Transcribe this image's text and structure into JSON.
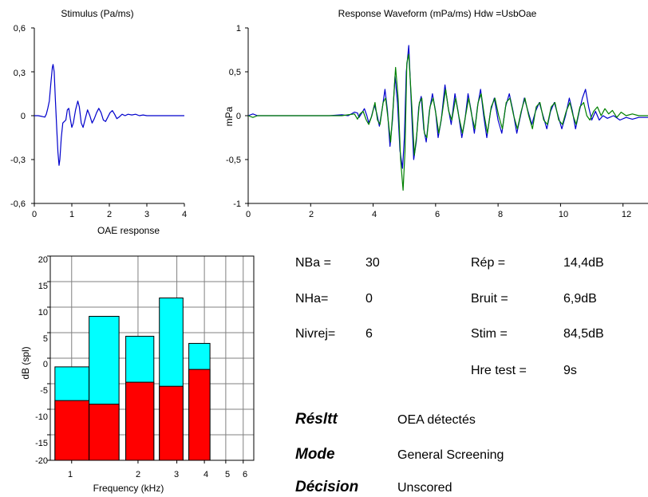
{
  "chart_data": [
    {
      "id": "stimulus",
      "type": "line",
      "title": "Stimulus (Pa/ms)",
      "xlim": [
        0,
        4
      ],
      "ylim": [
        -0.6,
        0.6
      ],
      "x_ticks": [
        "0",
        "1",
        "2",
        "3",
        "4"
      ],
      "y_ticks": [
        "0,6",
        "0,3",
        "0",
        "-0,3",
        "-0,6"
      ],
      "grid": false,
      "series": [
        {
          "color": "#0000cc",
          "points": [
            [
              0,
              0
            ],
            [
              0.1,
              0
            ],
            [
              0.2,
              -0.005
            ],
            [
              0.28,
              -0.01
            ],
            [
              0.32,
              0.01
            ],
            [
              0.36,
              0.05
            ],
            [
              0.4,
              0.1
            ],
            [
              0.44,
              0.22
            ],
            [
              0.48,
              0.33
            ],
            [
              0.5,
              0.35
            ],
            [
              0.53,
              0.3
            ],
            [
              0.56,
              0.12
            ],
            [
              0.6,
              -0.1
            ],
            [
              0.63,
              -0.25
            ],
            [
              0.66,
              -0.34
            ],
            [
              0.68,
              -0.3
            ],
            [
              0.72,
              -0.15
            ],
            [
              0.76,
              -0.05
            ],
            [
              0.8,
              -0.04
            ],
            [
              0.84,
              -0.03
            ],
            [
              0.88,
              0.04
            ],
            [
              0.92,
              0.05
            ],
            [
              0.96,
              -0.02
            ],
            [
              1.0,
              -0.08
            ],
            [
              1.04,
              -0.05
            ],
            [
              1.1,
              0.04
            ],
            [
              1.16,
              0.1
            ],
            [
              1.2,
              0.06
            ],
            [
              1.25,
              -0.05
            ],
            [
              1.3,
              -0.08
            ],
            [
              1.36,
              -0.02
            ],
            [
              1.42,
              0.04
            ],
            [
              1.48,
              0.0
            ],
            [
              1.54,
              -0.05
            ],
            [
              1.6,
              -0.02
            ],
            [
              1.66,
              0.02
            ],
            [
              1.72,
              0.05
            ],
            [
              1.78,
              0.02
            ],
            [
              1.84,
              -0.03
            ],
            [
              1.9,
              -0.04
            ],
            [
              1.96,
              -0.01
            ],
            [
              2.02,
              0.02
            ],
            [
              2.08,
              0.035
            ],
            [
              2.14,
              0.01
            ],
            [
              2.2,
              -0.02
            ],
            [
              2.26,
              -0.01
            ],
            [
              2.34,
              0.01
            ],
            [
              2.42,
              0.0
            ],
            [
              2.5,
              0.01
            ],
            [
              2.6,
              0.005
            ],
            [
              2.7,
              0.01
            ],
            [
              2.8,
              0.0
            ],
            [
              2.9,
              0.005
            ],
            [
              3.0,
              0
            ],
            [
              3.5,
              0
            ],
            [
              4.0,
              0
            ]
          ]
        }
      ]
    },
    {
      "id": "response",
      "type": "line",
      "title": "Response Waveform (mPa/ms) Hdw =UsbOae",
      "ylabel": "mPa",
      "xlim": [
        0,
        12.8
      ],
      "ylim": [
        -1,
        1
      ],
      "x_ticks": [
        "0",
        "2",
        "4",
        "6",
        "8",
        "10",
        "12"
      ],
      "y_ticks": [
        "1",
        "0,5",
        "0",
        "-0,5",
        "-1"
      ],
      "grid": false,
      "series": [
        {
          "color": "#0000cc",
          "points": [
            [
              0,
              0
            ],
            [
              0.15,
              0.02
            ],
            [
              0.3,
              0.0
            ],
            [
              1.0,
              0.0
            ],
            [
              2.0,
              0.0
            ],
            [
              2.6,
              0.0
            ],
            [
              3.0,
              0.01
            ],
            [
              3.2,
              0.0
            ],
            [
              3.4,
              0.04
            ],
            [
              3.5,
              0.03
            ],
            [
              3.55,
              -0.02
            ],
            [
              3.62,
              0.02
            ],
            [
              3.72,
              0.08
            ],
            [
              3.8,
              0.0
            ],
            [
              3.86,
              -0.08
            ],
            [
              3.94,
              -0.02
            ],
            [
              4.04,
              0.12
            ],
            [
              4.12,
              0.02
            ],
            [
              4.2,
              -0.12
            ],
            [
              4.3,
              0.1
            ],
            [
              4.38,
              0.3
            ],
            [
              4.46,
              0.05
            ],
            [
              4.54,
              -0.35
            ],
            [
              4.62,
              -0.05
            ],
            [
              4.7,
              0.45
            ],
            [
              4.78,
              0.15
            ],
            [
              4.86,
              -0.4
            ],
            [
              4.94,
              -0.6
            ],
            [
              5.0,
              -0.25
            ],
            [
              5.06,
              0.5
            ],
            [
              5.14,
              0.8
            ],
            [
              5.22,
              0.15
            ],
            [
              5.3,
              -0.5
            ],
            [
              5.38,
              -0.3
            ],
            [
              5.46,
              0.1
            ],
            [
              5.54,
              0.22
            ],
            [
              5.62,
              -0.15
            ],
            [
              5.7,
              -0.3
            ],
            [
              5.8,
              0.05
            ],
            [
              5.9,
              0.25
            ],
            [
              6.0,
              0.05
            ],
            [
              6.08,
              -0.25
            ],
            [
              6.18,
              -0.05
            ],
            [
              6.3,
              0.35
            ],
            [
              6.4,
              0.1
            ],
            [
              6.5,
              -0.1
            ],
            [
              6.62,
              0.25
            ],
            [
              6.72,
              0.05
            ],
            [
              6.84,
              -0.25
            ],
            [
              6.94,
              -0.05
            ],
            [
              7.04,
              0.25
            ],
            [
              7.14,
              0.05
            ],
            [
              7.24,
              -0.2
            ],
            [
              7.34,
              0.1
            ],
            [
              7.44,
              0.3
            ],
            [
              7.54,
              0.0
            ],
            [
              7.64,
              -0.25
            ],
            [
              7.76,
              0.05
            ],
            [
              7.88,
              0.2
            ],
            [
              8.0,
              -0.05
            ],
            [
              8.12,
              -0.2
            ],
            [
              8.24,
              0.1
            ],
            [
              8.36,
              0.25
            ],
            [
              8.48,
              0.05
            ],
            [
              8.6,
              -0.2
            ],
            [
              8.72,
              0.0
            ],
            [
              8.84,
              0.2
            ],
            [
              8.96,
              0.05
            ],
            [
              9.08,
              -0.1
            ],
            [
              9.2,
              0.05
            ],
            [
              9.32,
              0.15
            ],
            [
              9.44,
              0.0
            ],
            [
              9.56,
              -0.15
            ],
            [
              9.68,
              0.05
            ],
            [
              9.8,
              0.15
            ],
            [
              9.92,
              0.0
            ],
            [
              10.04,
              -0.15
            ],
            [
              10.16,
              0.0
            ],
            [
              10.28,
              0.2
            ],
            [
              10.38,
              0.05
            ],
            [
              10.48,
              -0.15
            ],
            [
              10.6,
              0.05
            ],
            [
              10.7,
              0.2
            ],
            [
              10.8,
              0.3
            ],
            [
              10.9,
              0.1
            ],
            [
              11.0,
              -0.05
            ],
            [
              11.12,
              0.05
            ],
            [
              11.24,
              -0.05
            ],
            [
              11.36,
              0.0
            ],
            [
              11.5,
              -0.03
            ],
            [
              11.7,
              0.0
            ],
            [
              11.9,
              -0.05
            ],
            [
              12.1,
              -0.02
            ],
            [
              12.3,
              -0.04
            ],
            [
              12.5,
              -0.02
            ],
            [
              12.8,
              -0.02
            ]
          ]
        },
        {
          "color": "#008000",
          "points": [
            [
              0,
              0
            ],
            [
              0.15,
              -0.02
            ],
            [
              0.3,
              0.0
            ],
            [
              1.0,
              0.0
            ],
            [
              2.0,
              0.0
            ],
            [
              2.6,
              0.0
            ],
            [
              3.0,
              0.0
            ],
            [
              3.2,
              0.01
            ],
            [
              3.4,
              0.02
            ],
            [
              3.5,
              -0.04
            ],
            [
              3.58,
              0.02
            ],
            [
              3.68,
              0.05
            ],
            [
              3.78,
              -0.05
            ],
            [
              3.86,
              -0.1
            ],
            [
              3.96,
              0.0
            ],
            [
              4.06,
              0.15
            ],
            [
              4.14,
              -0.05
            ],
            [
              4.22,
              -0.1
            ],
            [
              4.32,
              0.15
            ],
            [
              4.4,
              0.2
            ],
            [
              4.48,
              -0.05
            ],
            [
              4.56,
              -0.3
            ],
            [
              4.64,
              0.1
            ],
            [
              4.72,
              0.55
            ],
            [
              4.8,
              0.2
            ],
            [
              4.88,
              -0.5
            ],
            [
              4.96,
              -0.85
            ],
            [
              5.02,
              -0.4
            ],
            [
              5.08,
              0.6
            ],
            [
              5.14,
              0.7
            ],
            [
              5.24,
              0.1
            ],
            [
              5.32,
              -0.45
            ],
            [
              5.4,
              -0.2
            ],
            [
              5.48,
              0.15
            ],
            [
              5.56,
              0.2
            ],
            [
              5.64,
              -0.2
            ],
            [
              5.72,
              -0.25
            ],
            [
              5.82,
              0.1
            ],
            [
              5.92,
              0.2
            ],
            [
              6.02,
              0.0
            ],
            [
              6.1,
              -0.2
            ],
            [
              6.2,
              0.0
            ],
            [
              6.32,
              0.3
            ],
            [
              6.42,
              0.05
            ],
            [
              6.52,
              -0.05
            ],
            [
              6.64,
              0.2
            ],
            [
              6.74,
              0.0
            ],
            [
              6.86,
              -0.2
            ],
            [
              6.96,
              0.0
            ],
            [
              7.06,
              0.2
            ],
            [
              7.16,
              0.0
            ],
            [
              7.26,
              -0.15
            ],
            [
              7.36,
              0.15
            ],
            [
              7.46,
              0.25
            ],
            [
              7.56,
              0.0
            ],
            [
              7.66,
              -0.2
            ],
            [
              7.78,
              0.1
            ],
            [
              7.9,
              0.2
            ],
            [
              8.02,
              0.0
            ],
            [
              8.14,
              -0.15
            ],
            [
              8.26,
              0.15
            ],
            [
              8.38,
              0.2
            ],
            [
              8.5,
              0.0
            ],
            [
              8.62,
              -0.15
            ],
            [
              8.74,
              0.05
            ],
            [
              8.86,
              0.2
            ],
            [
              8.98,
              0.0
            ],
            [
              9.1,
              -0.15
            ],
            [
              9.22,
              0.1
            ],
            [
              9.34,
              0.15
            ],
            [
              9.46,
              -0.05
            ],
            [
              9.58,
              -0.1
            ],
            [
              9.7,
              0.1
            ],
            [
              9.82,
              0.15
            ],
            [
              9.94,
              -0.05
            ],
            [
              10.06,
              -0.1
            ],
            [
              10.18,
              0.05
            ],
            [
              10.3,
              0.15
            ],
            [
              10.4,
              0.0
            ],
            [
              10.5,
              -0.1
            ],
            [
              10.62,
              0.1
            ],
            [
              10.74,
              0.15
            ],
            [
              10.84,
              0.0
            ],
            [
              10.94,
              -0.05
            ],
            [
              11.06,
              0.05
            ],
            [
              11.18,
              0.1
            ],
            [
              11.3,
              0.0
            ],
            [
              11.42,
              0.08
            ],
            [
              11.54,
              0.02
            ],
            [
              11.66,
              0.06
            ],
            [
              11.8,
              -0.02
            ],
            [
              11.94,
              0.04
            ],
            [
              12.1,
              0.0
            ],
            [
              12.3,
              0.02
            ],
            [
              12.5,
              0.0
            ],
            [
              12.8,
              0.0
            ]
          ]
        }
      ]
    },
    {
      "id": "oae",
      "type": "bar",
      "title": "OAE response",
      "xlabel": "Frequency (kHz)",
      "ylabel": "dB (spl)",
      "ylim": [
        -20,
        20
      ],
      "x_scale": "log",
      "x_ticks": [
        "1",
        "2",
        "3",
        "4",
        "5",
        "6"
      ],
      "y_ticks": [
        "20",
        "15",
        "10",
        "5",
        "0",
        "-5",
        "-10",
        "-15",
        "-20"
      ],
      "grid": true,
      "response_color": "#00ffff",
      "noise_color": "#ff0000",
      "bars": [
        {
          "f_low": 0.84,
          "f_high": 1.2,
          "response": -1.7,
          "noise": -8.3
        },
        {
          "f_low": 1.2,
          "f_high": 1.64,
          "response": 8.2,
          "noise": -9.0
        },
        {
          "f_low": 1.76,
          "f_high": 2.36,
          "response": 4.3,
          "noise": -4.7
        },
        {
          "f_low": 2.5,
          "f_high": 3.2,
          "response": 11.8,
          "noise": -5.5
        },
        {
          "f_low": 3.4,
          "f_high": 4.24,
          "response": 2.9,
          "noise": -2.2
        }
      ]
    }
  ],
  "stats": {
    "nba_label": "NBa =",
    "nba_value": "30",
    "nha_label": "NHa=",
    "nha_value": "0",
    "nivrej_label": "Nivrej=",
    "nivrej_value": "6",
    "rep_label": "Rép =",
    "rep_value": "14,4dB",
    "bruit_label": "Bruit =",
    "bruit_value": "6,9dB",
    "stim_label": "Stim =",
    "stim_value": "84,5dB",
    "hre_label": "Hre test =",
    "hre_value": "9s"
  },
  "results": {
    "resltt_label": "Résltt",
    "resltt_value": "OEA détectés",
    "mode_label": "Mode",
    "mode_value": "General Screening",
    "decision_label": "Décision",
    "decision_value": "Unscored"
  }
}
